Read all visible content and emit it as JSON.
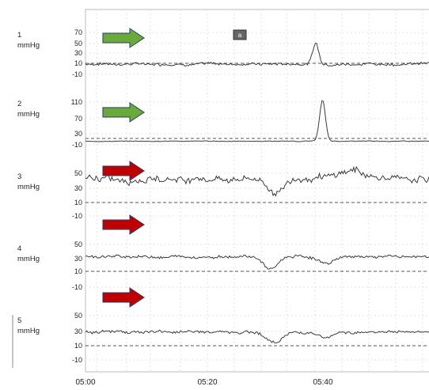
{
  "chart_data": {
    "type": "line",
    "x_ticks": [
      "05:00",
      "05:20",
      "05:40"
    ],
    "marker_label": "a",
    "colors": {
      "green_arrow": "#6aaa3a",
      "red_arrow": "#c00000",
      "trace": "#3a3a3a"
    },
    "channels": [
      {
        "label": "1",
        "unit": "mmHg",
        "yticks": [
          "70",
          "50",
          "30",
          "10",
          "-10"
        ],
        "arrow": "green",
        "baseline": 10,
        "noise": 4,
        "bumps": [
          {
            "at": 0.67,
            "height": 40,
            "width": 0.012
          }
        ]
      },
      {
        "label": "2",
        "unit": "mmHg",
        "yticks": [
          "110",
          "70",
          "30",
          "-10"
        ],
        "arrow": "green",
        "baseline": 0,
        "noise": 1.5,
        "bumps": [
          {
            "at": 0.69,
            "height": 115,
            "width": 0.012
          }
        ]
      },
      {
        "label": "3",
        "unit": "mmHg",
        "yticks": [
          "50",
          "30",
          "10",
          "-10"
        ],
        "arrow": "red",
        "baseline": 42,
        "noise": 7,
        "bumps": [
          {
            "at": 0.55,
            "height": -20,
            "width": 0.03
          },
          {
            "at": 0.78,
            "height": 12,
            "width": 0.05
          }
        ]
      },
      {
        "label": "4",
        "unit": "mmHg",
        "yticks": [
          "50",
          "30",
          "10",
          "-10"
        ],
        "arrow": "red",
        "baseline": 33,
        "noise": 3,
        "bumps": [
          {
            "at": 0.54,
            "height": -18,
            "width": 0.03
          },
          {
            "at": 0.7,
            "height": -10,
            "width": 0.03
          }
        ]
      },
      {
        "label": "5",
        "unit": "mmHg",
        "yticks": [
          "50",
          "30",
          "10",
          "-10"
        ],
        "arrow": "red",
        "baseline": 28,
        "noise": 3,
        "bumps": [
          {
            "at": 0.55,
            "height": -15,
            "width": 0.03
          },
          {
            "at": 0.7,
            "height": -8,
            "width": 0.03
          }
        ]
      }
    ]
  }
}
